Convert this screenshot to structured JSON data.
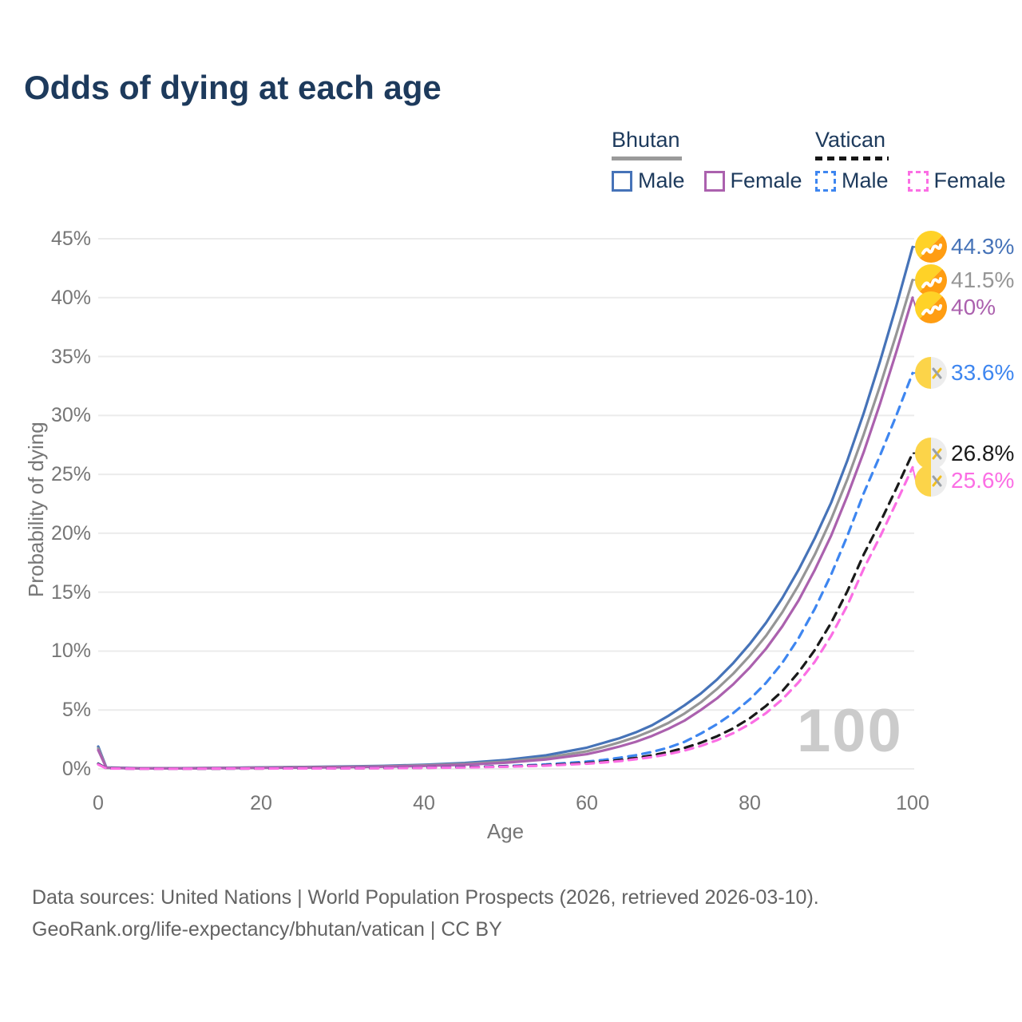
{
  "title": "Odds of dying at each age",
  "legend": {
    "groups": [
      {
        "name": "Bhutan",
        "style": "solid",
        "items": [
          {
            "label": "Male",
            "color": "#4673b8"
          },
          {
            "label": "Female",
            "color": "#ab61ae"
          }
        ]
      },
      {
        "name": "Vatican",
        "style": "dashed",
        "items": [
          {
            "label": "Male",
            "color": "#3e86f0"
          },
          {
            "label": "Female",
            "color": "#fb6ee4"
          }
        ]
      }
    ]
  },
  "watermark": "100",
  "footer": {
    "line1": "Data sources: United Nations | World Population Prospects (2026, retrieved 2026-03-10).",
    "line2": "GeoRank.org/life-expectancy/bhutan/vatican | CC BY"
  },
  "chart_data": {
    "type": "line",
    "title": "Odds of dying at each age",
    "xlabel": "Age",
    "ylabel": "Probability of dying",
    "xlim": [
      0,
      100
    ],
    "ylim": [
      0,
      45
    ],
    "xticks": [
      0,
      20,
      40,
      60,
      80,
      100
    ],
    "xtick_labels": [
      "0",
      "20",
      "40",
      "60",
      "80",
      "100"
    ],
    "yticks": [
      0,
      5,
      10,
      15,
      20,
      25,
      30,
      35,
      40,
      45
    ],
    "ytick_labels": [
      "0%",
      "5%",
      "10%",
      "15%",
      "20%",
      "25%",
      "30%",
      "35%",
      "40%",
      "45%"
    ],
    "grid": "horizontal",
    "legend_position": "top-right",
    "hover_age": "100",
    "series": [
      {
        "name": "Bhutan Male",
        "country": "Bhutan",
        "sex": "Male",
        "color": "#4673b8",
        "dash": false,
        "end_value": 44.3,
        "end_label": "44.3%",
        "points": [
          [
            0,
            1.9
          ],
          [
            1,
            0.12
          ],
          [
            5,
            0.06
          ],
          [
            10,
            0.06
          ],
          [
            15,
            0.09
          ],
          [
            20,
            0.13
          ],
          [
            25,
            0.16
          ],
          [
            30,
            0.2
          ],
          [
            35,
            0.26
          ],
          [
            40,
            0.35
          ],
          [
            45,
            0.5
          ],
          [
            50,
            0.75
          ],
          [
            55,
            1.15
          ],
          [
            60,
            1.8
          ],
          [
            62,
            2.2
          ],
          [
            64,
            2.6
          ],
          [
            66,
            3.1
          ],
          [
            68,
            3.7
          ],
          [
            70,
            4.5
          ],
          [
            72,
            5.4
          ],
          [
            74,
            6.4
          ],
          [
            76,
            7.6
          ],
          [
            78,
            9.0
          ],
          [
            80,
            10.6
          ],
          [
            82,
            12.4
          ],
          [
            84,
            14.5
          ],
          [
            86,
            16.9
          ],
          [
            88,
            19.6
          ],
          [
            90,
            22.6
          ],
          [
            92,
            26.2
          ],
          [
            94,
            30.2
          ],
          [
            96,
            34.6
          ],
          [
            98,
            39.3
          ],
          [
            100,
            44.3
          ]
        ]
      },
      {
        "name": "Bhutan Both sexes",
        "country": "Bhutan",
        "sex": "Both",
        "color": "#969696",
        "dash": false,
        "end_value": 41.5,
        "end_label": "41.5%",
        "points": [
          [
            0,
            1.75
          ],
          [
            1,
            0.1
          ],
          [
            5,
            0.05
          ],
          [
            10,
            0.05
          ],
          [
            15,
            0.08
          ],
          [
            20,
            0.11
          ],
          [
            25,
            0.14
          ],
          [
            30,
            0.17
          ],
          [
            35,
            0.22
          ],
          [
            40,
            0.3
          ],
          [
            45,
            0.42
          ],
          [
            50,
            0.62
          ],
          [
            55,
            0.95
          ],
          [
            60,
            1.5
          ],
          [
            62,
            1.85
          ],
          [
            64,
            2.25
          ],
          [
            66,
            2.7
          ],
          [
            68,
            3.25
          ],
          [
            70,
            3.9
          ],
          [
            72,
            4.7
          ],
          [
            74,
            5.65
          ],
          [
            76,
            6.8
          ],
          [
            78,
            8.1
          ],
          [
            80,
            9.6
          ],
          [
            82,
            11.3
          ],
          [
            84,
            13.3
          ],
          [
            86,
            15.6
          ],
          [
            88,
            18.2
          ],
          [
            90,
            21.2
          ],
          [
            92,
            24.6
          ],
          [
            94,
            28.4
          ],
          [
            96,
            32.5
          ],
          [
            98,
            36.9
          ],
          [
            100,
            41.5
          ]
        ]
      },
      {
        "name": "Bhutan Female",
        "country": "Bhutan",
        "sex": "Female",
        "color": "#ab61ae",
        "dash": false,
        "end_value": 40.0,
        "end_label": "40%",
        "points": [
          [
            0,
            1.6
          ],
          [
            1,
            0.09
          ],
          [
            5,
            0.04
          ],
          [
            10,
            0.04
          ],
          [
            15,
            0.06
          ],
          [
            20,
            0.09
          ],
          [
            25,
            0.11
          ],
          [
            30,
            0.14
          ],
          [
            35,
            0.18
          ],
          [
            40,
            0.25
          ],
          [
            45,
            0.35
          ],
          [
            50,
            0.52
          ],
          [
            55,
            0.8
          ],
          [
            60,
            1.25
          ],
          [
            62,
            1.55
          ],
          [
            64,
            1.9
          ],
          [
            66,
            2.3
          ],
          [
            68,
            2.8
          ],
          [
            70,
            3.4
          ],
          [
            72,
            4.1
          ],
          [
            74,
            5.0
          ],
          [
            76,
            6.0
          ],
          [
            78,
            7.2
          ],
          [
            80,
            8.6
          ],
          [
            82,
            10.2
          ],
          [
            84,
            12.1
          ],
          [
            86,
            14.3
          ],
          [
            88,
            16.9
          ],
          [
            90,
            19.8
          ],
          [
            92,
            23.2
          ],
          [
            94,
            26.9
          ],
          [
            96,
            31.0
          ],
          [
            98,
            35.4
          ],
          [
            100,
            40.0
          ]
        ]
      },
      {
        "name": "Vatican Male",
        "country": "Vatican",
        "sex": "Male",
        "color": "#3e86f0",
        "dash": true,
        "end_value": 33.6,
        "end_label": "33.6%",
        "points": [
          [
            0,
            0.45
          ],
          [
            1,
            0.05
          ],
          [
            5,
            0.02
          ],
          [
            10,
            0.02
          ],
          [
            15,
            0.03
          ],
          [
            20,
            0.04
          ],
          [
            25,
            0.05
          ],
          [
            30,
            0.06
          ],
          [
            35,
            0.08
          ],
          [
            40,
            0.11
          ],
          [
            45,
            0.16
          ],
          [
            50,
            0.24
          ],
          [
            55,
            0.38
          ],
          [
            60,
            0.62
          ],
          [
            62,
            0.76
          ],
          [
            64,
            0.94
          ],
          [
            66,
            1.16
          ],
          [
            68,
            1.44
          ],
          [
            70,
            1.8
          ],
          [
            72,
            2.3
          ],
          [
            74,
            3.0
          ],
          [
            76,
            3.8
          ],
          [
            78,
            4.75
          ],
          [
            80,
            5.9
          ],
          [
            82,
            7.3
          ],
          [
            84,
            9.0
          ],
          [
            86,
            11.1
          ],
          [
            88,
            13.6
          ],
          [
            90,
            16.5
          ],
          [
            92,
            19.8
          ],
          [
            94,
            23.4
          ],
          [
            96,
            26.6
          ],
          [
            98,
            30.0
          ],
          [
            100,
            33.6
          ]
        ]
      },
      {
        "name": "Vatican Both sexes",
        "country": "Vatican",
        "sex": "Both",
        "color": "#1a1a1a",
        "dash": true,
        "end_value": 26.8,
        "end_label": "26.8%",
        "points": [
          [
            0,
            0.42
          ],
          [
            1,
            0.045
          ],
          [
            5,
            0.018
          ],
          [
            10,
            0.018
          ],
          [
            15,
            0.027
          ],
          [
            20,
            0.036
          ],
          [
            25,
            0.045
          ],
          [
            30,
            0.054
          ],
          [
            35,
            0.07
          ],
          [
            40,
            0.095
          ],
          [
            45,
            0.14
          ],
          [
            50,
            0.2
          ],
          [
            55,
            0.31
          ],
          [
            60,
            0.5
          ],
          [
            62,
            0.61
          ],
          [
            64,
            0.75
          ],
          [
            66,
            0.93
          ],
          [
            68,
            1.15
          ],
          [
            70,
            1.43
          ],
          [
            72,
            1.78
          ],
          [
            74,
            2.22
          ],
          [
            76,
            2.77
          ],
          [
            78,
            3.45
          ],
          [
            80,
            4.3
          ],
          [
            82,
            5.35
          ],
          [
            84,
            6.6
          ],
          [
            86,
            8.2
          ],
          [
            88,
            10.1
          ],
          [
            90,
            12.4
          ],
          [
            92,
            15.1
          ],
          [
            94,
            18.2
          ],
          [
            96,
            20.9
          ],
          [
            98,
            23.8
          ],
          [
            100,
            26.8
          ]
        ]
      },
      {
        "name": "Vatican Female",
        "country": "Vatican",
        "sex": "Female",
        "color": "#fb6ee4",
        "dash": true,
        "end_value": 25.6,
        "end_label": "25.6%",
        "points": [
          [
            0,
            0.38
          ],
          [
            1,
            0.04
          ],
          [
            5,
            0.016
          ],
          [
            10,
            0.016
          ],
          [
            15,
            0.024
          ],
          [
            20,
            0.032
          ],
          [
            25,
            0.04
          ],
          [
            30,
            0.05
          ],
          [
            35,
            0.063
          ],
          [
            40,
            0.086
          ],
          [
            45,
            0.125
          ],
          [
            50,
            0.18
          ],
          [
            55,
            0.28
          ],
          [
            60,
            0.44
          ],
          [
            62,
            0.54
          ],
          [
            64,
            0.66
          ],
          [
            66,
            0.82
          ],
          [
            68,
            1.0
          ],
          [
            70,
            1.25
          ],
          [
            72,
            1.56
          ],
          [
            74,
            1.95
          ],
          [
            76,
            2.44
          ],
          [
            78,
            3.04
          ],
          [
            80,
            3.8
          ],
          [
            82,
            4.74
          ],
          [
            84,
            5.9
          ],
          [
            86,
            7.35
          ],
          [
            88,
            9.1
          ],
          [
            90,
            11.3
          ],
          [
            92,
            13.9
          ],
          [
            94,
            17.0
          ],
          [
            96,
            19.7
          ],
          [
            98,
            22.6
          ],
          [
            100,
            25.6
          ]
        ]
      }
    ]
  }
}
